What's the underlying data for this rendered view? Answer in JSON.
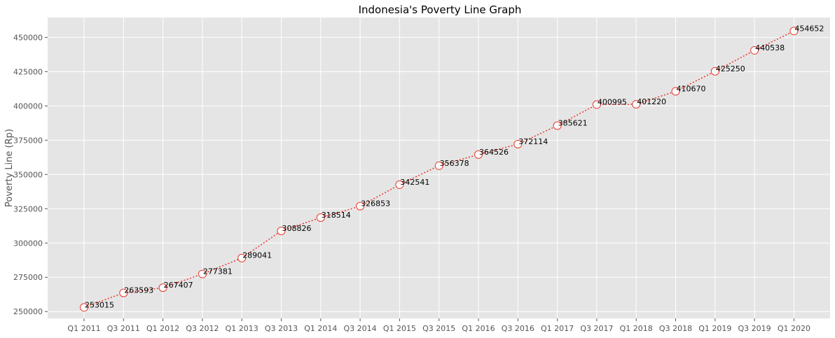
{
  "chart_data": {
    "type": "line",
    "title": "Indonesia's Poverty Line Graph",
    "xlabel": "",
    "ylabel": "Poverty Line (Rp)",
    "categories": [
      "Q1 2011",
      "Q3 2011",
      "Q1 2012",
      "Q3 2012",
      "Q1 2013",
      "Q3 2013",
      "Q1 2014",
      "Q3 2014",
      "Q1 2015",
      "Q3 2015",
      "Q1 2016",
      "Q3 2016",
      "Q1 2017",
      "Q3 2017",
      "Q1 2018",
      "Q3 2018",
      "Q1 2019",
      "Q3 2019",
      "Q1 2020"
    ],
    "series": [
      {
        "values": [
          253015,
          263593,
          267407,
          277381,
          289041,
          308826,
          318514,
          326853,
          342541,
          356378,
          364526,
          372114,
          385621,
          400995,
          401220,
          410670,
          425250,
          440538,
          454652
        ],
        "labels": [
          "253015",
          "263593",
          "267407",
          "277381",
          "289041",
          "308826",
          "318514",
          "326853",
          "342541",
          "356378",
          "364526",
          "372114",
          "385621",
          "400995",
          "401220",
          "410670",
          "425250",
          "440538",
          "454652"
        ]
      }
    ],
    "yticks": [
      250000,
      275000,
      300000,
      325000,
      350000,
      375000,
      400000,
      425000,
      450000
    ],
    "ytick_labels": [
      "250000",
      "275000",
      "300000",
      "325000",
      "350000",
      "375000",
      "400000",
      "425000",
      "450000"
    ],
    "ylim": [
      245000,
      464500
    ],
    "grid": true,
    "line_style": "dotted",
    "colors": {
      "line": "#e8382b",
      "marker_edge": "#e8382b",
      "marker_fill": "#ffffff",
      "plot_background": "#e5e5e5",
      "grid": "#ffffff"
    }
  }
}
